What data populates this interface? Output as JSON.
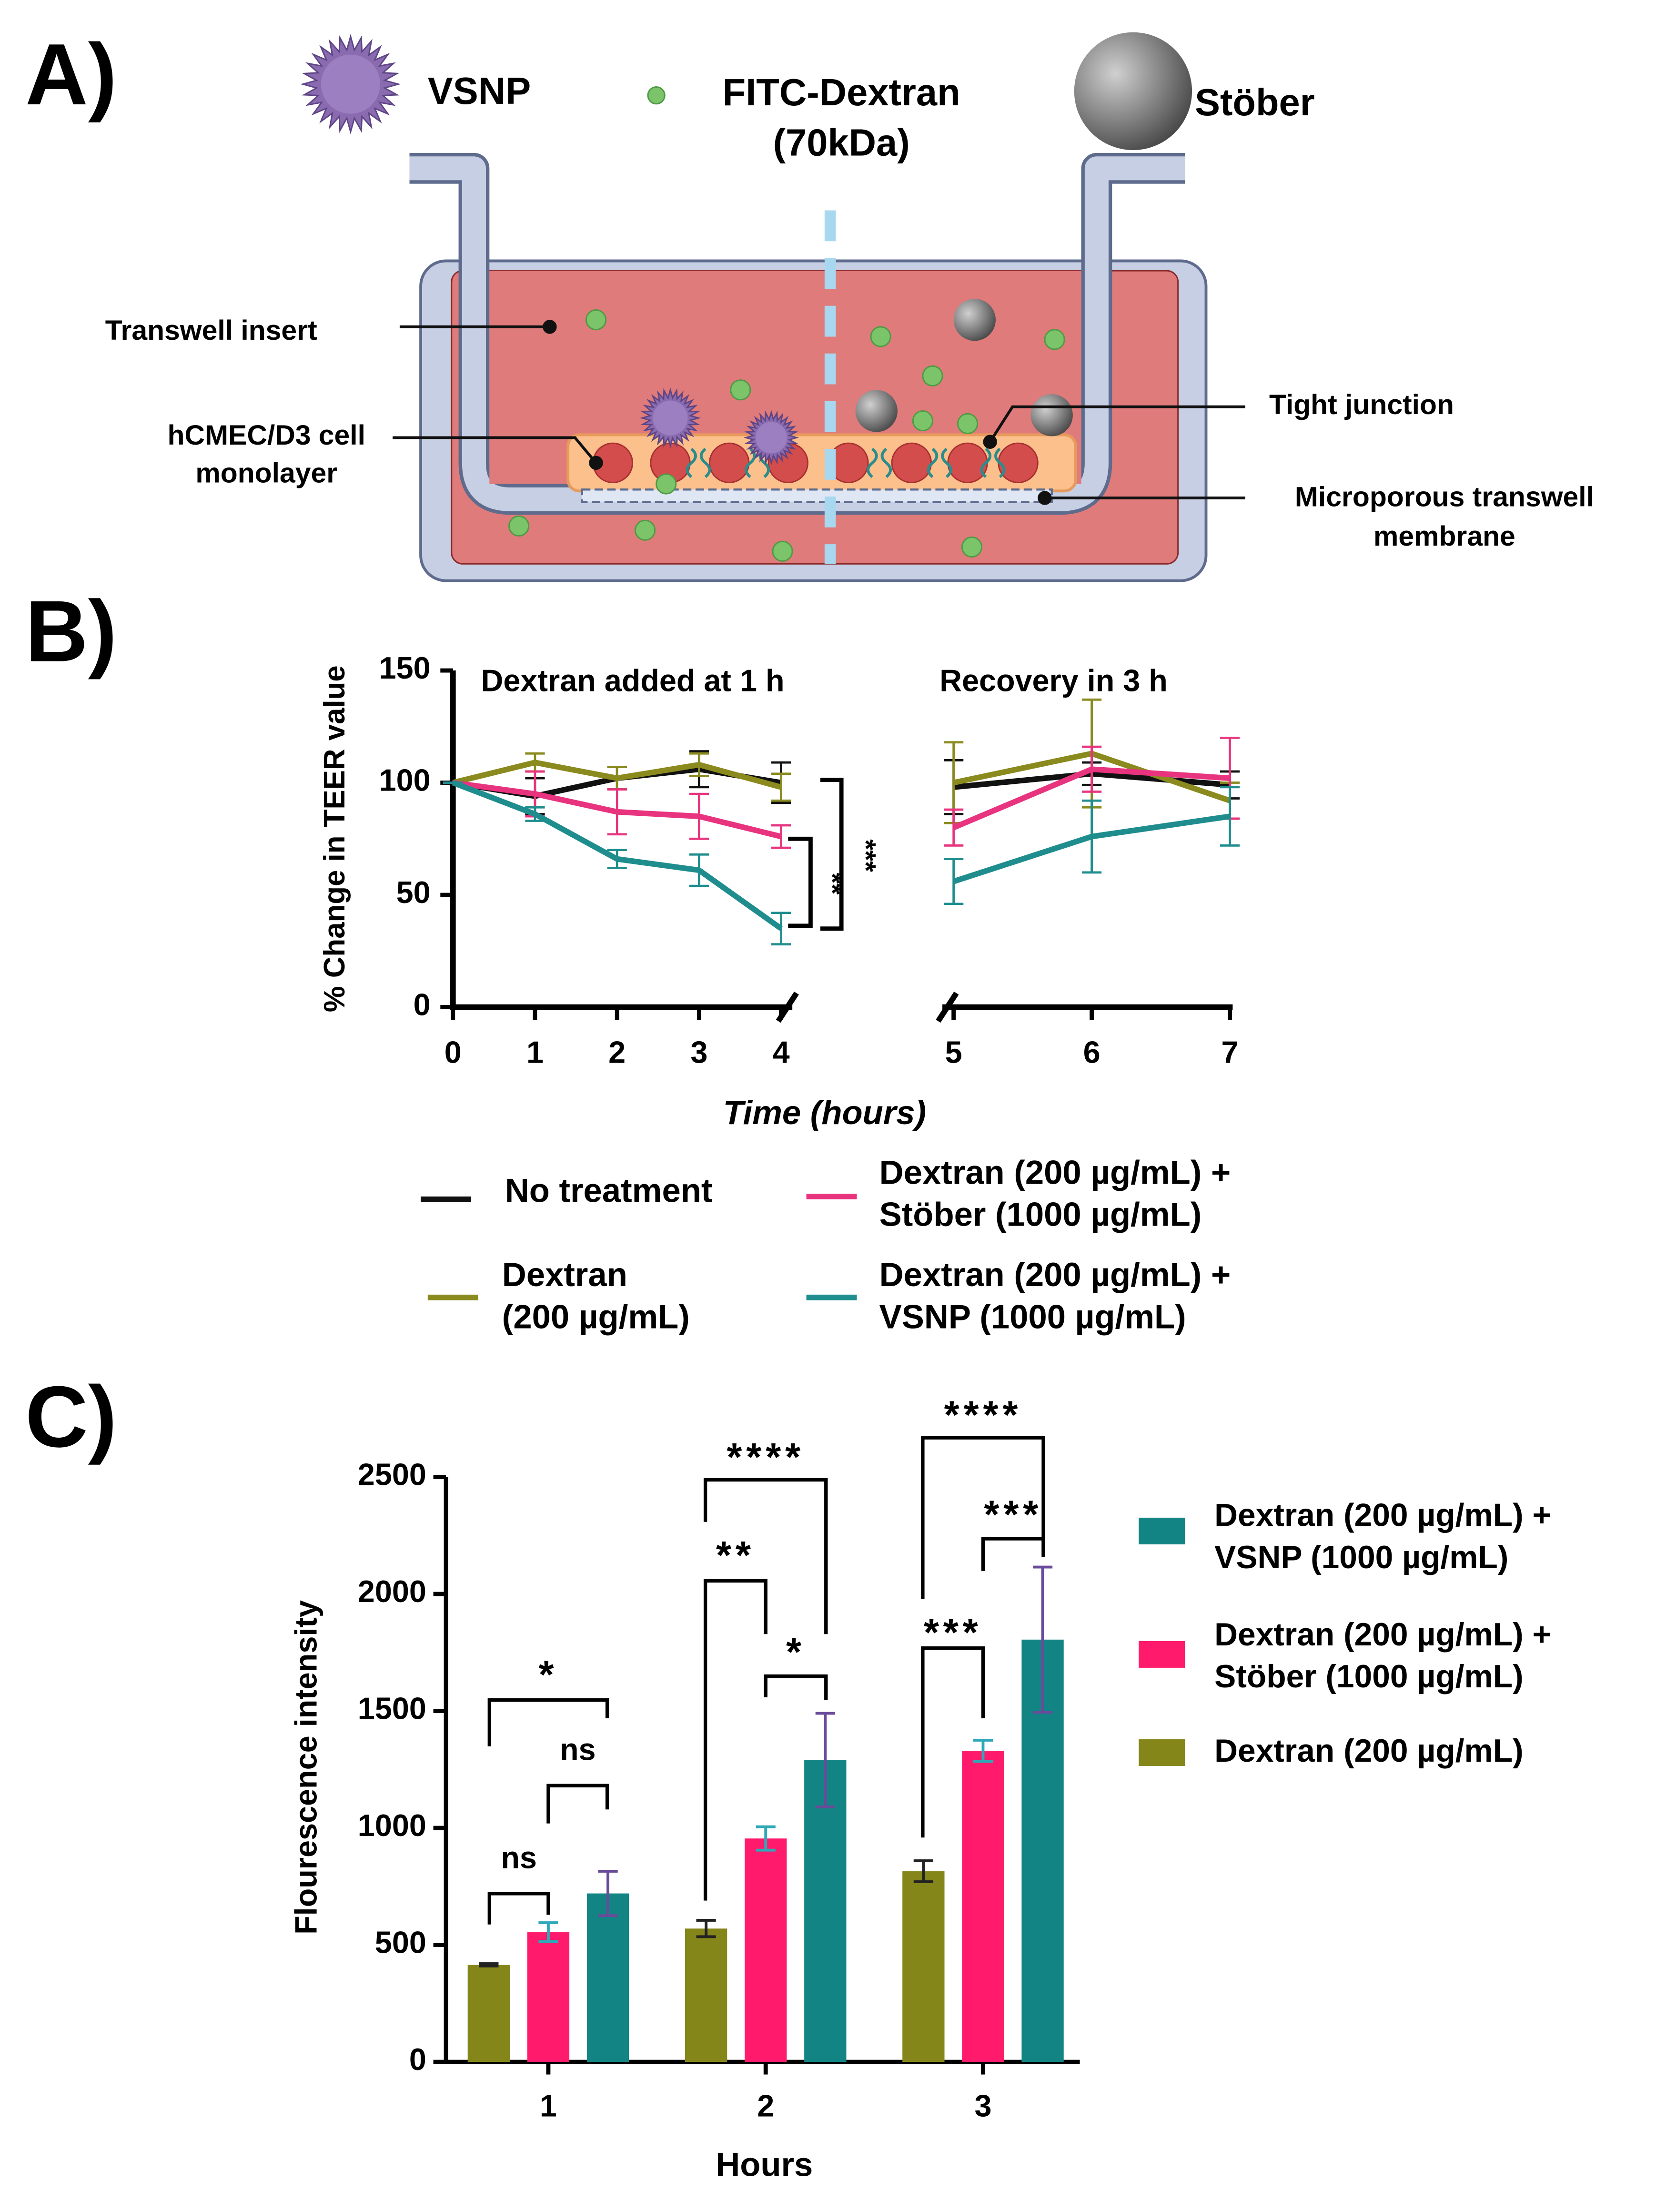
{
  "panels": [
    "A)",
    "B)",
    "C)"
  ],
  "diagram": {
    "particles": {
      "vsnp": "VSNP",
      "fitc": "FITC-Dextran\n(70kDa)",
      "stober": "Stöber"
    },
    "labels": {
      "insert": "Transwell insert",
      "cells": "hCMEC/D3 cell\nmonolayer",
      "junction": "Tight junction",
      "membrane": "Microporous transwell\nmembrane"
    }
  },
  "chart_data": [
    {
      "type": "line",
      "xlabel": "Time (hours)",
      "ylabel": "% Change in TEER value",
      "x": [
        0,
        1,
        2,
        3,
        4,
        5,
        6,
        7
      ],
      "xlim": [
        0,
        7
      ],
      "x_break": [
        4,
        5
      ],
      "xticks": [
        0,
        1,
        2,
        3,
        4,
        5,
        6,
        7
      ],
      "ylim": [
        0,
        150
      ],
      "yticks": [
        0,
        50,
        100,
        150
      ],
      "annotations": [
        "Dextran added at 1 h",
        "Recovery in 3 h",
        "**",
        "***"
      ],
      "series": [
        {
          "name": "No treatment",
          "color": "#111111",
          "values": [
            100,
            94,
            102,
            106,
            100,
            98,
            104,
            99
          ],
          "errors": [
            0,
            8,
            5,
            8,
            9,
            12,
            5,
            6
          ]
        },
        {
          "name": "Dextran\n(200 µg/mL)",
          "color": "#8a8a1e",
          "values": [
            100,
            109,
            102,
            108,
            98,
            100,
            113,
            92
          ],
          "errors": [
            0,
            4,
            5,
            5,
            6,
            18,
            24,
            8
          ]
        },
        {
          "name": "Dextran (200 µg/mL) +\nStöber (1000 µg/mL)",
          "color": "#e8337f",
          "values": [
            100,
            95,
            87,
            85,
            76,
            80,
            106,
            102
          ],
          "errors": [
            0,
            10,
            10,
            10,
            5,
            8,
            10,
            18
          ]
        },
        {
          "name": "Dextran (200 µg/mL) +\nVSNP (1000 µg/mL)",
          "color": "#1f8d8d",
          "values": [
            100,
            86,
            66,
            61,
            35,
            56,
            76,
            85
          ],
          "errors": [
            0,
            3,
            4,
            7,
            7,
            10,
            16,
            13
          ]
        }
      ]
    },
    {
      "type": "bar",
      "xlabel": "Hours",
      "ylabel": "Flourescence intensity",
      "categories": [
        "1",
        "2",
        "3"
      ],
      "ylim": [
        0,
        2500
      ],
      "yticks": [
        0,
        500,
        1000,
        1500,
        2000,
        2500
      ],
      "annotations": [
        "ns",
        "ns",
        "*",
        "**",
        "*",
        "****",
        "***",
        "***",
        "****"
      ],
      "series": [
        {
          "name": "Dextran (200 µg/mL)",
          "color": "#85861a",
          "error_color": "#222222",
          "values": [
            415,
            570,
            815
          ],
          "errors": [
            5,
            35,
            45
          ]
        },
        {
          "name": "Dextran (200 µg/mL) +\nStöber (1000 µg/mL)",
          "color": "#ff1a6c",
          "error_color": "#2fa8b8",
          "values": [
            555,
            955,
            1330
          ],
          "errors": [
            40,
            50,
            45
          ]
        },
        {
          "name": "Dextran (200 µg/mL) +\nVSNP (1000 µg/mL)",
          "color": "#138484",
          "error_color": "#6a4b9a",
          "values": [
            720,
            1290,
            1805
          ],
          "errors": [
            95,
            200,
            310
          ]
        }
      ]
    }
  ]
}
